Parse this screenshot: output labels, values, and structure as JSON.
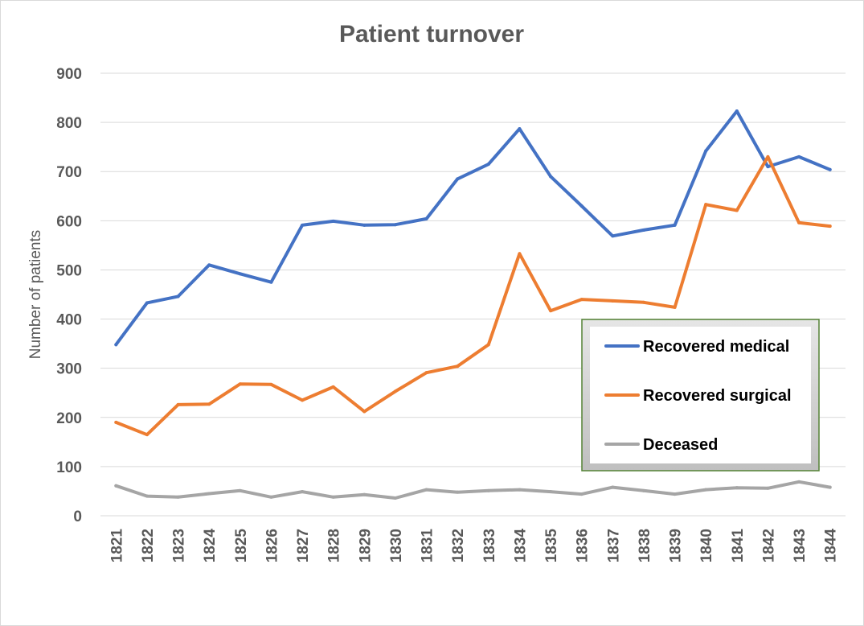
{
  "chart_data": {
    "type": "line",
    "title": "Patient turnover",
    "xlabel": "",
    "ylabel": "Number of patients",
    "ylim": [
      0,
      900
    ],
    "yticks": [
      0,
      100,
      200,
      300,
      400,
      500,
      600,
      700,
      800,
      900
    ],
    "grid": true,
    "legend_placement": "center-right",
    "categories": [
      "1821",
      "1822",
      "1823",
      "1824",
      "1825",
      "1826",
      "1827",
      "1828",
      "1829",
      "1830",
      "1831",
      "1832",
      "1833",
      "1834",
      "1835",
      "1836",
      "1837",
      "1838",
      "1839",
      "1840",
      "1841",
      "1842",
      "1843",
      "1844"
    ],
    "series": [
      {
        "name": "Recovered medical",
        "color": "#4472c4",
        "values": [
          348,
          433,
          446,
          510,
          492,
          475,
          591,
          599,
          591,
          592,
          604,
          685,
          715,
          787,
          690,
          630,
          569,
          581,
          591,
          742,
          823,
          710,
          730,
          704
        ]
      },
      {
        "name": "Recovered surgical",
        "color": "#ed7d31",
        "values": [
          190,
          165,
          226,
          227,
          268,
          267,
          235,
          262,
          212,
          253,
          291,
          304,
          348,
          533,
          417,
          440,
          437,
          434,
          424,
          633,
          621,
          730,
          596,
          589
        ]
      },
      {
        "name": "Deceased",
        "color": "#a5a5a5",
        "values": [
          61,
          40,
          38,
          45,
          51,
          38,
          49,
          38,
          43,
          36,
          53,
          48,
          51,
          53,
          49,
          44,
          58,
          51,
          44,
          53,
          57,
          56,
          69,
          58
        ]
      }
    ]
  }
}
